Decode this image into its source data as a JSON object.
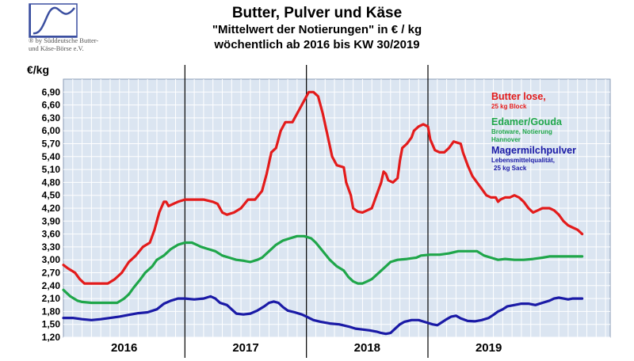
{
  "header": {
    "title": "Butter, Pulver und Käse",
    "subtitle": "\"Mittelwert der Notierungen\"  in € / kg",
    "period": "wöchentlich  ab 2016 bis KW 30/2019",
    "copyright_line1": "® by Süddeutsche Butter-",
    "copyright_line2": "und Käse-Börse e.V."
  },
  "colors": {
    "butter": "#e31b1b",
    "cheese": "#1fa64a",
    "powder": "#1a1aa6",
    "plot_bg": "#dbe5f1",
    "grid": "#ffffff",
    "year_divider": "#000000"
  },
  "chart_data": {
    "type": "line",
    "ylabel": "€/kg",
    "ylim": [
      1.2,
      7.2
    ],
    "yticks": [
      "1,20",
      "1,50",
      "1,80",
      "2,10",
      "2,40",
      "2,70",
      "3,00",
      "3,30",
      "3,60",
      "3,90",
      "4,20",
      "4,50",
      "4,80",
      "5,10",
      "5,40",
      "5,70",
      "6,00",
      "6,30",
      "6,60",
      "6,90"
    ],
    "ytick_values": [
      1.2,
      1.5,
      1.8,
      2.1,
      2.4,
      2.7,
      3.0,
      3.3,
      3.6,
      3.9,
      4.2,
      4.5,
      4.8,
      5.1,
      5.4,
      5.7,
      6.0,
      6.3,
      6.6,
      6.9
    ],
    "xlim": [
      0,
      234
    ],
    "year_labels": [
      "2016",
      "2017",
      "2018",
      "2019"
    ],
    "year_boundaries": [
      0,
      52,
      104,
      156,
      208
    ],
    "legend_position": "right",
    "legend": [
      {
        "name": "Butter lose,",
        "detail": [
          "25 kg Block"
        ],
        "color_key": "butter"
      },
      {
        "name": "Edamer/Gouda",
        "detail": [
          "Brotware, Notierung",
          "Hannover"
        ],
        "color_key": "cheese"
      },
      {
        "name": "Magermilchpulver",
        "detail": [
          "Lebensmittelqualität,",
          "25 kg Sack"
        ],
        "color_key": "powder"
      }
    ],
    "series": [
      {
        "name": "Butter lose, 25 kg Block",
        "color_key": "butter",
        "points": [
          [
            0,
            2.88
          ],
          [
            2,
            2.8
          ],
          [
            5,
            2.7
          ],
          [
            7,
            2.55
          ],
          [
            9,
            2.45
          ],
          [
            12,
            2.45
          ],
          [
            16,
            2.45
          ],
          [
            19,
            2.45
          ],
          [
            22,
            2.55
          ],
          [
            25,
            2.7
          ],
          [
            28,
            2.95
          ],
          [
            31,
            3.1
          ],
          [
            34,
            3.3
          ],
          [
            37,
            3.4
          ],
          [
            39,
            3.7
          ],
          [
            41,
            4.1
          ],
          [
            43,
            4.35
          ],
          [
            44,
            4.35
          ],
          [
            45,
            4.25
          ],
          [
            47,
            4.3
          ],
          [
            49,
            4.35
          ],
          [
            52,
            4.4
          ],
          [
            56,
            4.4
          ],
          [
            60,
            4.4
          ],
          [
            64,
            4.35
          ],
          [
            66,
            4.3
          ],
          [
            68,
            4.1
          ],
          [
            70,
            4.05
          ],
          [
            73,
            4.1
          ],
          [
            76,
            4.2
          ],
          [
            79,
            4.4
          ],
          [
            82,
            4.4
          ],
          [
            85,
            4.6
          ],
          [
            87,
            5.0
          ],
          [
            89,
            5.5
          ],
          [
            91,
            5.6
          ],
          [
            93,
            6.0
          ],
          [
            95,
            6.2
          ],
          [
            98,
            6.2
          ],
          [
            100,
            6.4
          ],
          [
            102,
            6.6
          ],
          [
            104,
            6.8
          ],
          [
            105,
            6.9
          ],
          [
            107,
            6.9
          ],
          [
            109,
            6.8
          ],
          [
            111,
            6.4
          ],
          [
            113,
            5.9
          ],
          [
            115,
            5.4
          ],
          [
            117,
            5.2
          ],
          [
            120,
            5.15
          ],
          [
            121,
            4.8
          ],
          [
            123,
            4.5
          ],
          [
            124,
            4.2
          ],
          [
            126,
            4.12
          ],
          [
            128,
            4.1
          ],
          [
            130,
            4.15
          ],
          [
            132,
            4.2
          ],
          [
            134,
            4.5
          ],
          [
            136,
            4.8
          ],
          [
            137,
            5.05
          ],
          [
            138,
            5.0
          ],
          [
            139,
            4.85
          ],
          [
            141,
            4.8
          ],
          [
            143,
            4.9
          ],
          [
            144,
            5.3
          ],
          [
            145,
            5.6
          ],
          [
            147,
            5.7
          ],
          [
            149,
            5.85
          ],
          [
            150,
            6.0
          ],
          [
            152,
            6.1
          ],
          [
            154,
            6.15
          ],
          [
            156,
            6.1
          ],
          [
            157,
            5.8
          ],
          [
            159,
            5.55
          ],
          [
            161,
            5.5
          ],
          [
            163,
            5.5
          ],
          [
            165,
            5.6
          ],
          [
            167,
            5.75
          ],
          [
            170,
            5.7
          ],
          [
            171,
            5.5
          ],
          [
            173,
            5.2
          ],
          [
            175,
            4.95
          ],
          [
            177,
            4.8
          ],
          [
            179,
            4.65
          ],
          [
            181,
            4.5
          ],
          [
            183,
            4.45
          ],
          [
            185,
            4.45
          ],
          [
            186,
            4.35
          ],
          [
            187,
            4.4
          ],
          [
            189,
            4.45
          ],
          [
            191,
            4.45
          ],
          [
            193,
            4.5
          ],
          [
            195,
            4.45
          ],
          [
            197,
            4.35
          ],
          [
            199,
            4.2
          ],
          [
            201,
            4.1
          ],
          [
            203,
            4.15
          ],
          [
            205,
            4.2
          ],
          [
            208,
            4.2
          ],
          [
            210,
            4.15
          ],
          [
            212,
            4.05
          ],
          [
            214,
            3.9
          ],
          [
            216,
            3.8
          ],
          [
            218,
            3.75
          ],
          [
            220,
            3.7
          ],
          [
            221,
            3.65
          ],
          [
            222,
            3.6
          ]
        ]
      },
      {
        "name": "Edamer/Gouda",
        "color_key": "cheese",
        "points": [
          [
            0,
            2.3
          ],
          [
            3,
            2.15
          ],
          [
            6,
            2.05
          ],
          [
            8,
            2.02
          ],
          [
            12,
            2.0
          ],
          [
            18,
            2.0
          ],
          [
            23,
            2.0
          ],
          [
            26,
            2.1
          ],
          [
            28,
            2.2
          ],
          [
            30,
            2.35
          ],
          [
            33,
            2.55
          ],
          [
            35,
            2.7
          ],
          [
            38,
            2.85
          ],
          [
            40,
            3.0
          ],
          [
            43,
            3.1
          ],
          [
            46,
            3.25
          ],
          [
            49,
            3.35
          ],
          [
            52,
            3.4
          ],
          [
            55,
            3.4
          ],
          [
            57,
            3.35
          ],
          [
            59,
            3.3
          ],
          [
            62,
            3.25
          ],
          [
            65,
            3.2
          ],
          [
            68,
            3.1
          ],
          [
            71,
            3.05
          ],
          [
            74,
            3.0
          ],
          [
            77,
            2.98
          ],
          [
            80,
            2.95
          ],
          [
            83,
            3.0
          ],
          [
            85,
            3.05
          ],
          [
            88,
            3.2
          ],
          [
            91,
            3.35
          ],
          [
            94,
            3.45
          ],
          [
            97,
            3.5
          ],
          [
            100,
            3.55
          ],
          [
            103,
            3.55
          ],
          [
            106,
            3.5
          ],
          [
            108,
            3.4
          ],
          [
            111,
            3.2
          ],
          [
            114,
            3.0
          ],
          [
            117,
            2.85
          ],
          [
            120,
            2.75
          ],
          [
            122,
            2.6
          ],
          [
            124,
            2.5
          ],
          [
            126,
            2.45
          ],
          [
            128,
            2.45
          ],
          [
            130,
            2.5
          ],
          [
            132,
            2.55
          ],
          [
            134,
            2.65
          ],
          [
            136,
            2.75
          ],
          [
            138,
            2.85
          ],
          [
            140,
            2.95
          ],
          [
            143,
            3.0
          ],
          [
            147,
            3.02
          ],
          [
            151,
            3.05
          ],
          [
            153,
            3.1
          ],
          [
            157,
            3.12
          ],
          [
            161,
            3.12
          ],
          [
            165,
            3.15
          ],
          [
            169,
            3.2
          ],
          [
            173,
            3.2
          ],
          [
            177,
            3.2
          ],
          [
            180,
            3.1
          ],
          [
            183,
            3.05
          ],
          [
            186,
            3.0
          ],
          [
            189,
            3.02
          ],
          [
            193,
            3.0
          ],
          [
            197,
            3.0
          ],
          [
            201,
            3.02
          ],
          [
            205,
            3.05
          ],
          [
            208,
            3.08
          ],
          [
            212,
            3.08
          ],
          [
            216,
            3.08
          ],
          [
            220,
            3.08
          ],
          [
            222,
            3.08
          ]
        ]
      },
      {
        "name": "Magermilchpulver",
        "color_key": "powder",
        "points": [
          [
            0,
            1.65
          ],
          [
            4,
            1.65
          ],
          [
            8,
            1.62
          ],
          [
            12,
            1.6
          ],
          [
            16,
            1.62
          ],
          [
            20,
            1.65
          ],
          [
            24,
            1.68
          ],
          [
            28,
            1.72
          ],
          [
            32,
            1.76
          ],
          [
            36,
            1.78
          ],
          [
            40,
            1.85
          ],
          [
            43,
            1.98
          ],
          [
            46,
            2.05
          ],
          [
            49,
            2.1
          ],
          [
            52,
            2.1
          ],
          [
            56,
            2.08
          ],
          [
            60,
            2.1
          ],
          [
            63,
            2.15
          ],
          [
            65,
            2.1
          ],
          [
            67,
            2.0
          ],
          [
            70,
            1.95
          ],
          [
            72,
            1.85
          ],
          [
            74,
            1.75
          ],
          [
            77,
            1.73
          ],
          [
            80,
            1.75
          ],
          [
            83,
            1.82
          ],
          [
            86,
            1.92
          ],
          [
            88,
            2.0
          ],
          [
            90,
            2.03
          ],
          [
            92,
            2.0
          ],
          [
            94,
            1.9
          ],
          [
            96,
            1.82
          ],
          [
            99,
            1.78
          ],
          [
            102,
            1.73
          ],
          [
            104,
            1.68
          ],
          [
            107,
            1.6
          ],
          [
            110,
            1.56
          ],
          [
            114,
            1.52
          ],
          [
            118,
            1.5
          ],
          [
            122,
            1.45
          ],
          [
            125,
            1.4
          ],
          [
            128,
            1.38
          ],
          [
            131,
            1.36
          ],
          [
            134,
            1.33
          ],
          [
            136,
            1.3
          ],
          [
            138,
            1.28
          ],
          [
            140,
            1.3
          ],
          [
            142,
            1.4
          ],
          [
            144,
            1.5
          ],
          [
            146,
            1.56
          ],
          [
            149,
            1.6
          ],
          [
            152,
            1.6
          ],
          [
            155,
            1.55
          ],
          [
            158,
            1.5
          ],
          [
            160,
            1.48
          ],
          [
            162,
            1.55
          ],
          [
            164,
            1.62
          ],
          [
            166,
            1.68
          ],
          [
            168,
            1.7
          ],
          [
            170,
            1.64
          ],
          [
            173,
            1.58
          ],
          [
            176,
            1.57
          ],
          [
            179,
            1.6
          ],
          [
            182,
            1.65
          ],
          [
            184,
            1.72
          ],
          [
            186,
            1.8
          ],
          [
            188,
            1.85
          ],
          [
            190,
            1.92
          ],
          [
            193,
            1.95
          ],
          [
            196,
            1.98
          ],
          [
            199,
            1.98
          ],
          [
            202,
            1.95
          ],
          [
            205,
            2.0
          ],
          [
            208,
            2.05
          ],
          [
            210,
            2.1
          ],
          [
            212,
            2.12
          ],
          [
            214,
            2.1
          ],
          [
            216,
            2.08
          ],
          [
            218,
            2.1
          ],
          [
            220,
            2.1
          ],
          [
            222,
            2.1
          ]
        ]
      }
    ]
  }
}
